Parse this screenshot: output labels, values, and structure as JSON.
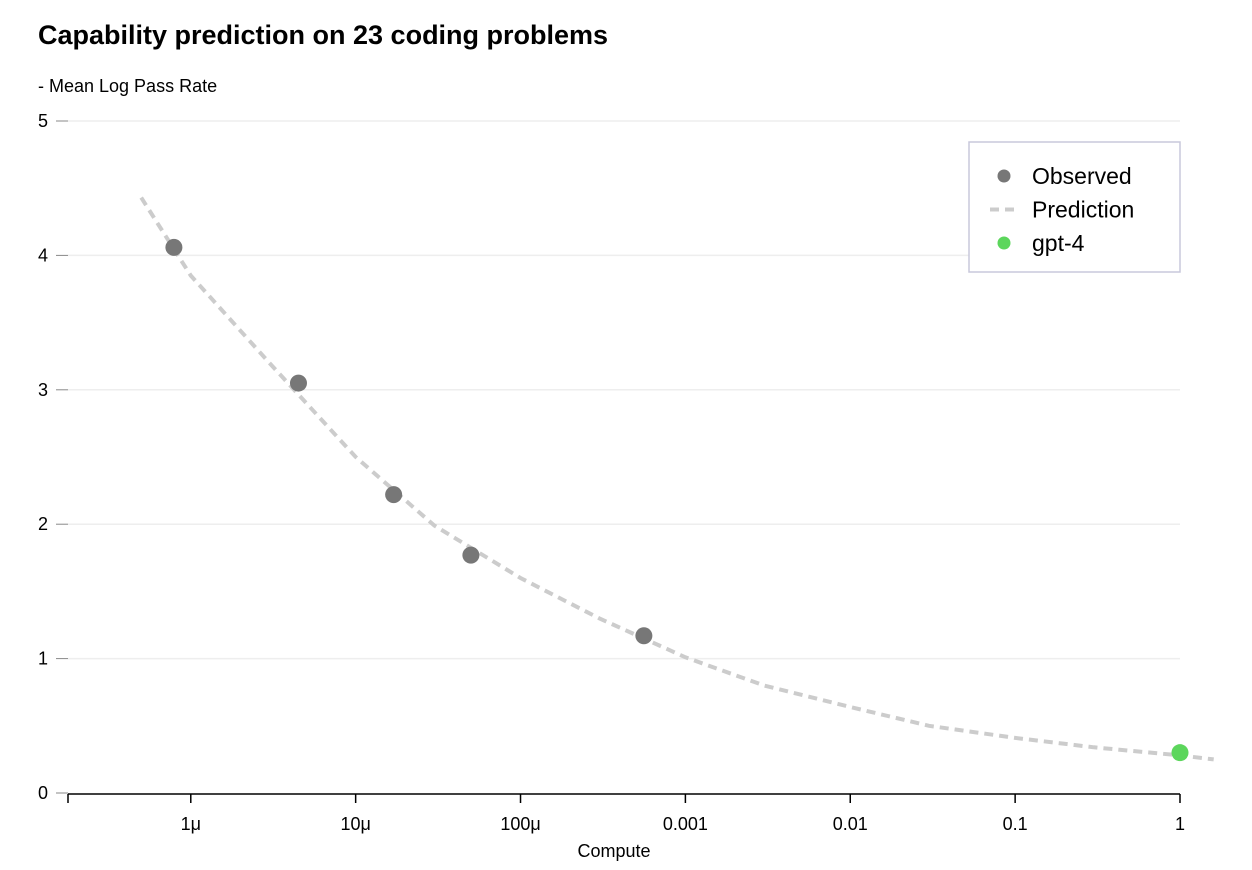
{
  "chart_data": {
    "type": "scatter",
    "title": "Capability prediction on 23 coding problems",
    "ylabel": "- Mean Log Pass Rate",
    "xlabel": "Compute",
    "x_scale": "log",
    "xlim": [
      1.8e-07,
      1
    ],
    "ylim": [
      0,
      5
    ],
    "grid": "horizontal",
    "x_ticks": [
      {
        "value": 1e-06,
        "label": "1μ"
      },
      {
        "value": 1e-05,
        "label": "10μ"
      },
      {
        "value": 0.0001,
        "label": "100μ"
      },
      {
        "value": 0.001,
        "label": "0.001"
      },
      {
        "value": 0.01,
        "label": "0.01"
      },
      {
        "value": 0.1,
        "label": "0.1"
      },
      {
        "value": 1,
        "label": "1"
      }
    ],
    "y_ticks": [
      {
        "value": 0,
        "label": "0"
      },
      {
        "value": 1,
        "label": "1"
      },
      {
        "value": 2,
        "label": "2"
      },
      {
        "value": 3,
        "label": "3"
      },
      {
        "value": 4,
        "label": "4"
      },
      {
        "value": 5,
        "label": "5"
      }
    ],
    "legend_position": "top-right",
    "series": [
      {
        "name": "Observed",
        "kind": "points",
        "color": "#777777",
        "points": [
          {
            "x": 7.9e-07,
            "y": 4.06
          },
          {
            "x": 4.5e-06,
            "y": 3.05
          },
          {
            "x": 1.7e-05,
            "y": 2.22
          },
          {
            "x": 5e-05,
            "y": 1.77
          },
          {
            "x": 0.00056,
            "y": 1.17
          }
        ]
      },
      {
        "name": "Prediction",
        "kind": "dashed-line",
        "color": "#cccccc",
        "points": [
          {
            "x": 5e-07,
            "y": 4.43
          },
          {
            "x": 1e-06,
            "y": 3.85
          },
          {
            "x": 3e-06,
            "y": 3.2
          },
          {
            "x": 1e-05,
            "y": 2.5
          },
          {
            "x": 3e-05,
            "y": 1.99
          },
          {
            "x": 0.0001,
            "y": 1.6
          },
          {
            "x": 0.0003,
            "y": 1.3
          },
          {
            "x": 0.001,
            "y": 1.01
          },
          {
            "x": 0.003,
            "y": 0.8
          },
          {
            "x": 0.01,
            "y": 0.64
          },
          {
            "x": 0.03,
            "y": 0.5
          },
          {
            "x": 0.1,
            "y": 0.41
          },
          {
            "x": 0.3,
            "y": 0.34
          },
          {
            "x": 1.0,
            "y": 0.28
          },
          {
            "x": 1.6,
            "y": 0.25
          }
        ]
      },
      {
        "name": "gpt-4",
        "kind": "points",
        "color": "#5cd65c",
        "points": [
          {
            "x": 1.0,
            "y": 0.3
          }
        ]
      }
    ]
  }
}
